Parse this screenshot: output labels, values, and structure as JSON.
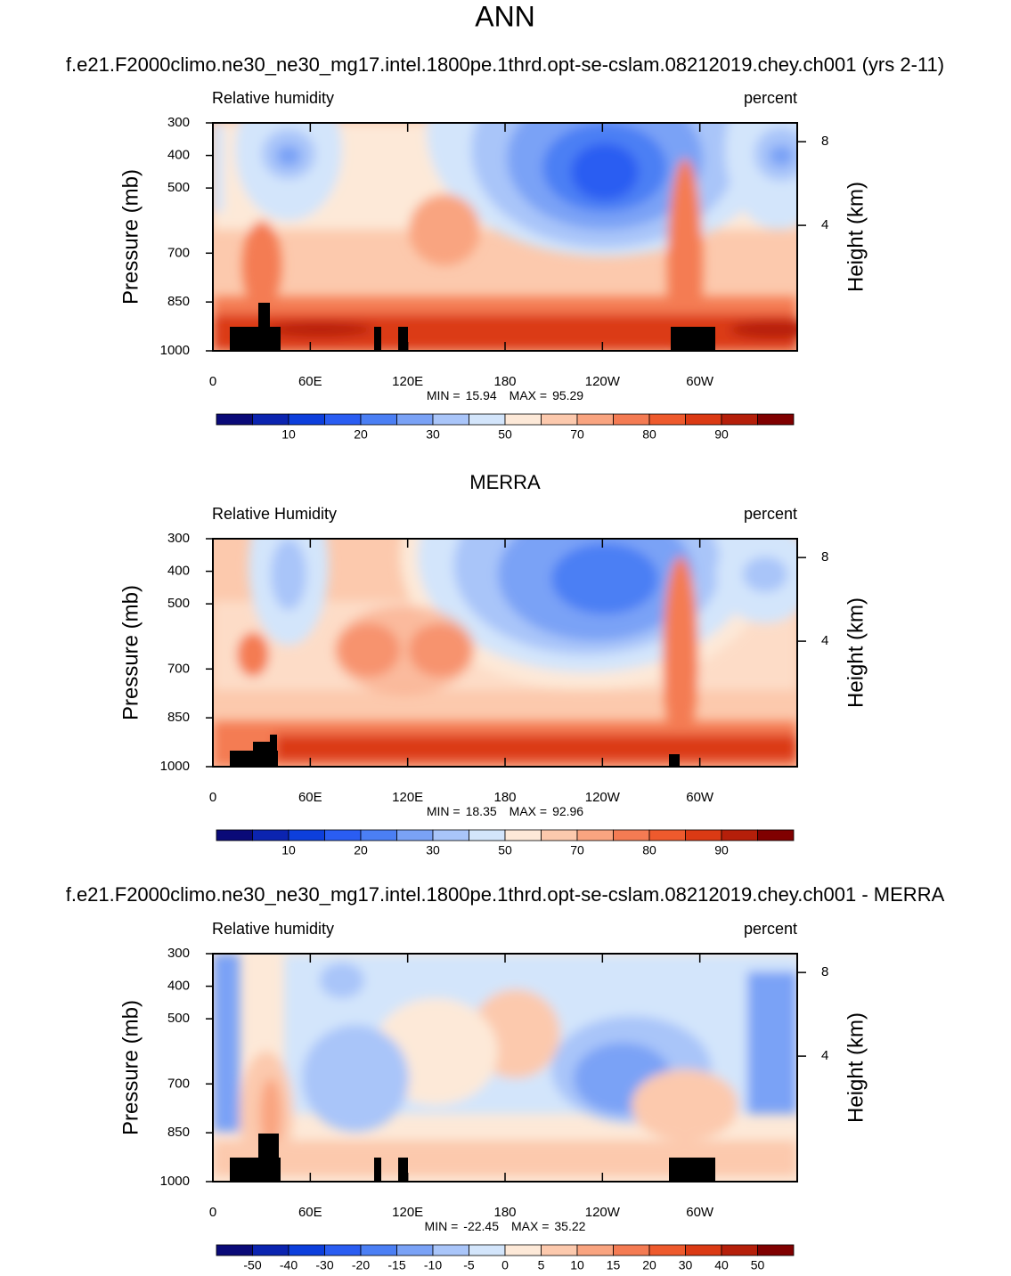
{
  "title": "ANN",
  "chart_data": [
    {
      "type": "contour",
      "title": "f.e21.F2000climo.ne30_ne30_mg17.intel.1800pe.1thrd.opt-se-cslam.08212019.chey.ch001 (yrs 2-11)",
      "left_label": "Relative humidity",
      "right_label": "percent",
      "ylabel": "Pressure (mb)",
      "y2label": "Height (km)",
      "xlim": [
        0,
        360
      ],
      "xticks": [
        0,
        {
          "value": 60,
          "label": "60E"
        },
        {
          "value": 120,
          "label": "120E"
        },
        180,
        {
          "value": 240,
          "label": "120W"
        },
        {
          "value": 300,
          "label": "60W"
        }
      ],
      "ylim": [
        1000,
        300
      ],
      "yticks": [
        300,
        400,
        500,
        700,
        850,
        1000
      ],
      "y2lim": [
        -2,
        8.9
      ],
      "y2ticks": [
        4,
        8
      ],
      "stats": {
        "min_label": "MIN =",
        "min": 15.94,
        "max_label": "MAX =",
        "max": 95.29
      },
      "colorbar": {
        "levels": [
          5,
          10,
          15,
          20,
          25,
          30,
          40,
          50,
          60,
          70,
          75,
          80,
          85,
          90,
          95
        ],
        "label_stride": 2,
        "colors": [
          "#0a0a78",
          "#0b24b0",
          "#0d3fdc",
          "#2a5df2",
          "#4b7ff4",
          "#7aa2f6",
          "#a9c5f9",
          "#d3e5fb",
          "#fde9d8",
          "#fcc9ad",
          "#f9a480",
          "#f47b53",
          "#ee5a2d",
          "#db3a14",
          "#b51f0a",
          "#800000"
        ]
      }
    },
    {
      "type": "contour",
      "title": "MERRA",
      "left_label": "Relative Humidity",
      "right_label": "percent",
      "ylabel": "Pressure (mb)",
      "y2label": "Height (km)",
      "xlim": [
        0,
        360
      ],
      "xticks": [
        0,
        {
          "value": 60,
          "label": "60E"
        },
        {
          "value": 120,
          "label": "120E"
        },
        180,
        {
          "value": 240,
          "label": "120W"
        },
        {
          "value": 300,
          "label": "60W"
        }
      ],
      "ylim": [
        1000,
        300
      ],
      "yticks": [
        300,
        400,
        500,
        700,
        850,
        1000
      ],
      "y2lim": [
        -2,
        8.9
      ],
      "y2ticks": [
        4,
        8
      ],
      "stats": {
        "min_label": "MIN =",
        "min": 18.35,
        "max_label": "MAX =",
        "max": 92.96
      },
      "colorbar": {
        "levels": [
          5,
          10,
          15,
          20,
          25,
          30,
          40,
          50,
          60,
          70,
          75,
          80,
          85,
          90,
          95
        ],
        "label_stride": 2,
        "colors": [
          "#0a0a78",
          "#0b24b0",
          "#0d3fdc",
          "#2a5df2",
          "#4b7ff4",
          "#7aa2f6",
          "#a9c5f9",
          "#d3e5fb",
          "#fde9d8",
          "#fcc9ad",
          "#f9a480",
          "#f47b53",
          "#ee5a2d",
          "#db3a14",
          "#b51f0a",
          "#800000"
        ]
      }
    },
    {
      "type": "contour",
      "title": "f.e21.F2000climo.ne30_ne30_mg17.intel.1800pe.1thrd.opt-se-cslam.08212019.chey.ch001 - MERRA",
      "left_label": "Relative humidity",
      "right_label": "percent",
      "ylabel": "Pressure (mb)",
      "y2label": "Height (km)",
      "xlim": [
        0,
        360
      ],
      "xticks": [
        0,
        {
          "value": 60,
          "label": "60E"
        },
        {
          "value": 120,
          "label": "120E"
        },
        180,
        {
          "value": 240,
          "label": "120W"
        },
        {
          "value": 300,
          "label": "60W"
        }
      ],
      "ylim": [
        1000,
        300
      ],
      "yticks": [
        300,
        400,
        500,
        700,
        850,
        1000
      ],
      "y2lim": [
        -2,
        8.9
      ],
      "y2ticks": [
        4,
        8
      ],
      "stats": {
        "min_label": "MIN =",
        "min": -22.45,
        "max_label": "MAX =",
        "max": 35.22
      },
      "colorbar": {
        "levels": [
          -50,
          -40,
          -30,
          -20,
          -15,
          -10,
          -5,
          0,
          5,
          10,
          15,
          20,
          30,
          40,
          50
        ],
        "label_stride": 1,
        "colors": [
          "#0a0a78",
          "#0b24b0",
          "#0d3fdc",
          "#2a5df2",
          "#4b7ff4",
          "#7aa2f6",
          "#a9c5f9",
          "#d3e5fb",
          "#fde9d8",
          "#fcc9ad",
          "#f9a480",
          "#f47b53",
          "#ee5a2d",
          "#db3a14",
          "#b51f0a",
          "#800000"
        ]
      }
    }
  ]
}
